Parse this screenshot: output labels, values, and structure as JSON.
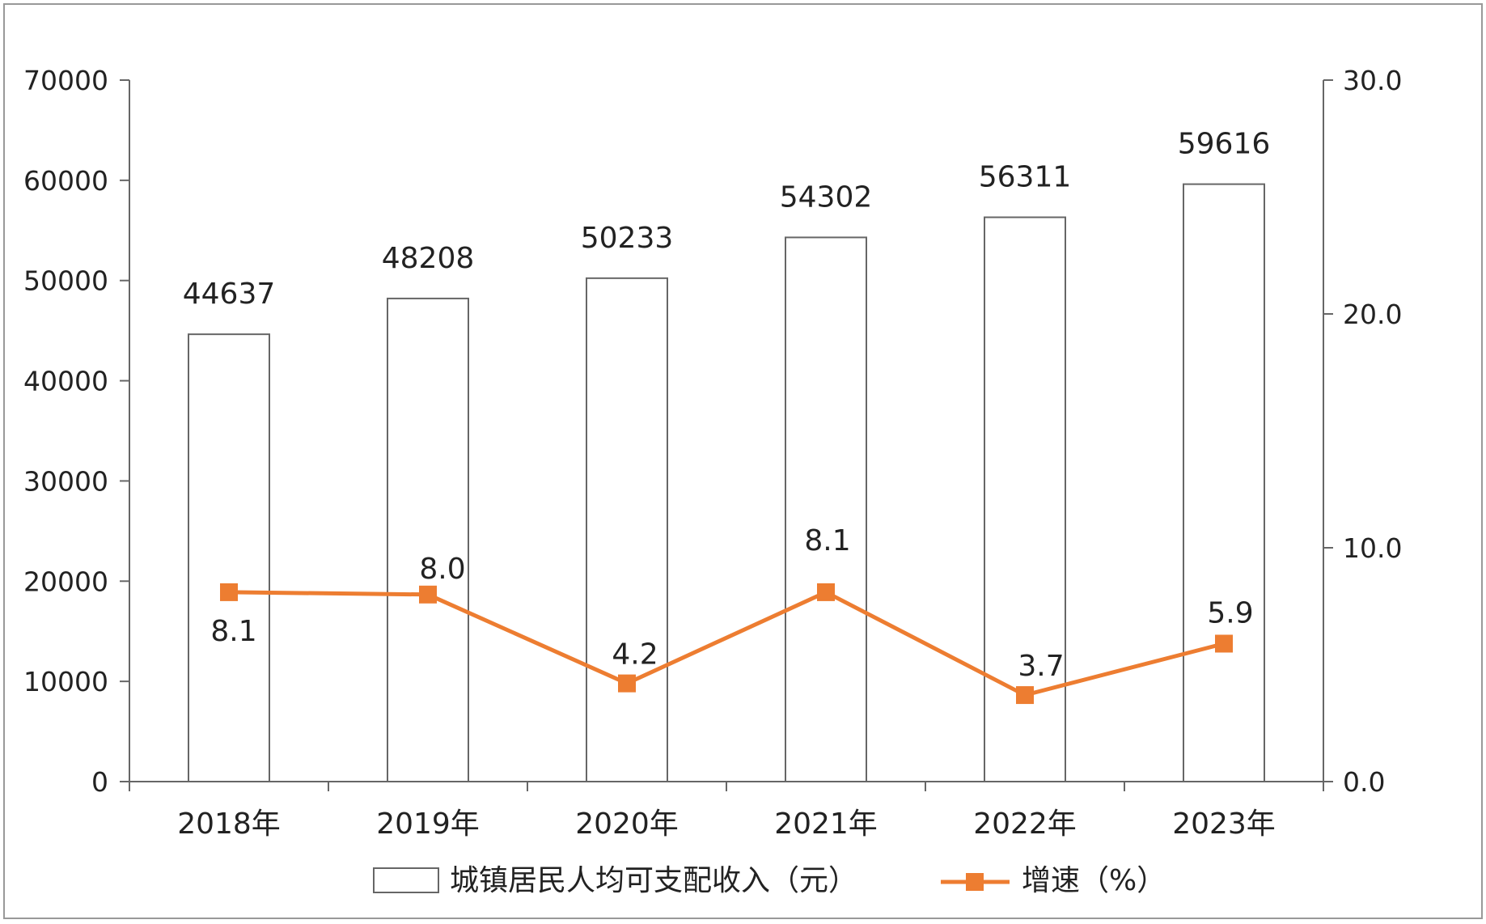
{
  "chart_data": {
    "type": "bar",
    "categories": [
      "2018年",
      "2019年",
      "2020年",
      "2021年",
      "2022年",
      "2023年"
    ],
    "series": [
      {
        "name": "城镇居民人均可支配收入（元）",
        "type": "bar",
        "axis": "left",
        "values": [
          44637,
          48208,
          50233,
          54302,
          56311,
          59616
        ]
      },
      {
        "name": "增速（%）",
        "type": "line",
        "axis": "right",
        "values": [
          8.1,
          8.0,
          4.2,
          8.1,
          3.7,
          5.9
        ]
      }
    ],
    "y_left": {
      "range": [
        0,
        70000
      ],
      "ticks": [
        "0",
        "10000",
        "20000",
        "30000",
        "40000",
        "50000",
        "60000",
        "70000"
      ]
    },
    "y_right": {
      "range": [
        0,
        30
      ],
      "ticks": [
        "0.0",
        "10.0",
        "20.0",
        "30.0"
      ]
    },
    "bar_labels": [
      "44637",
      "48208",
      "50233",
      "54302",
      "56311",
      "59616"
    ],
    "line_labels": [
      "8.1",
      "8.0",
      "4.2",
      "8.1",
      "3.7",
      "5.9"
    ],
    "legend": {
      "position": "bottom"
    },
    "grid": false,
    "colors": {
      "bar_fill": "#ffffff",
      "bar_stroke": "#666666",
      "line": "#ED7D31",
      "axis": "#666666",
      "frame": "#999999"
    }
  }
}
